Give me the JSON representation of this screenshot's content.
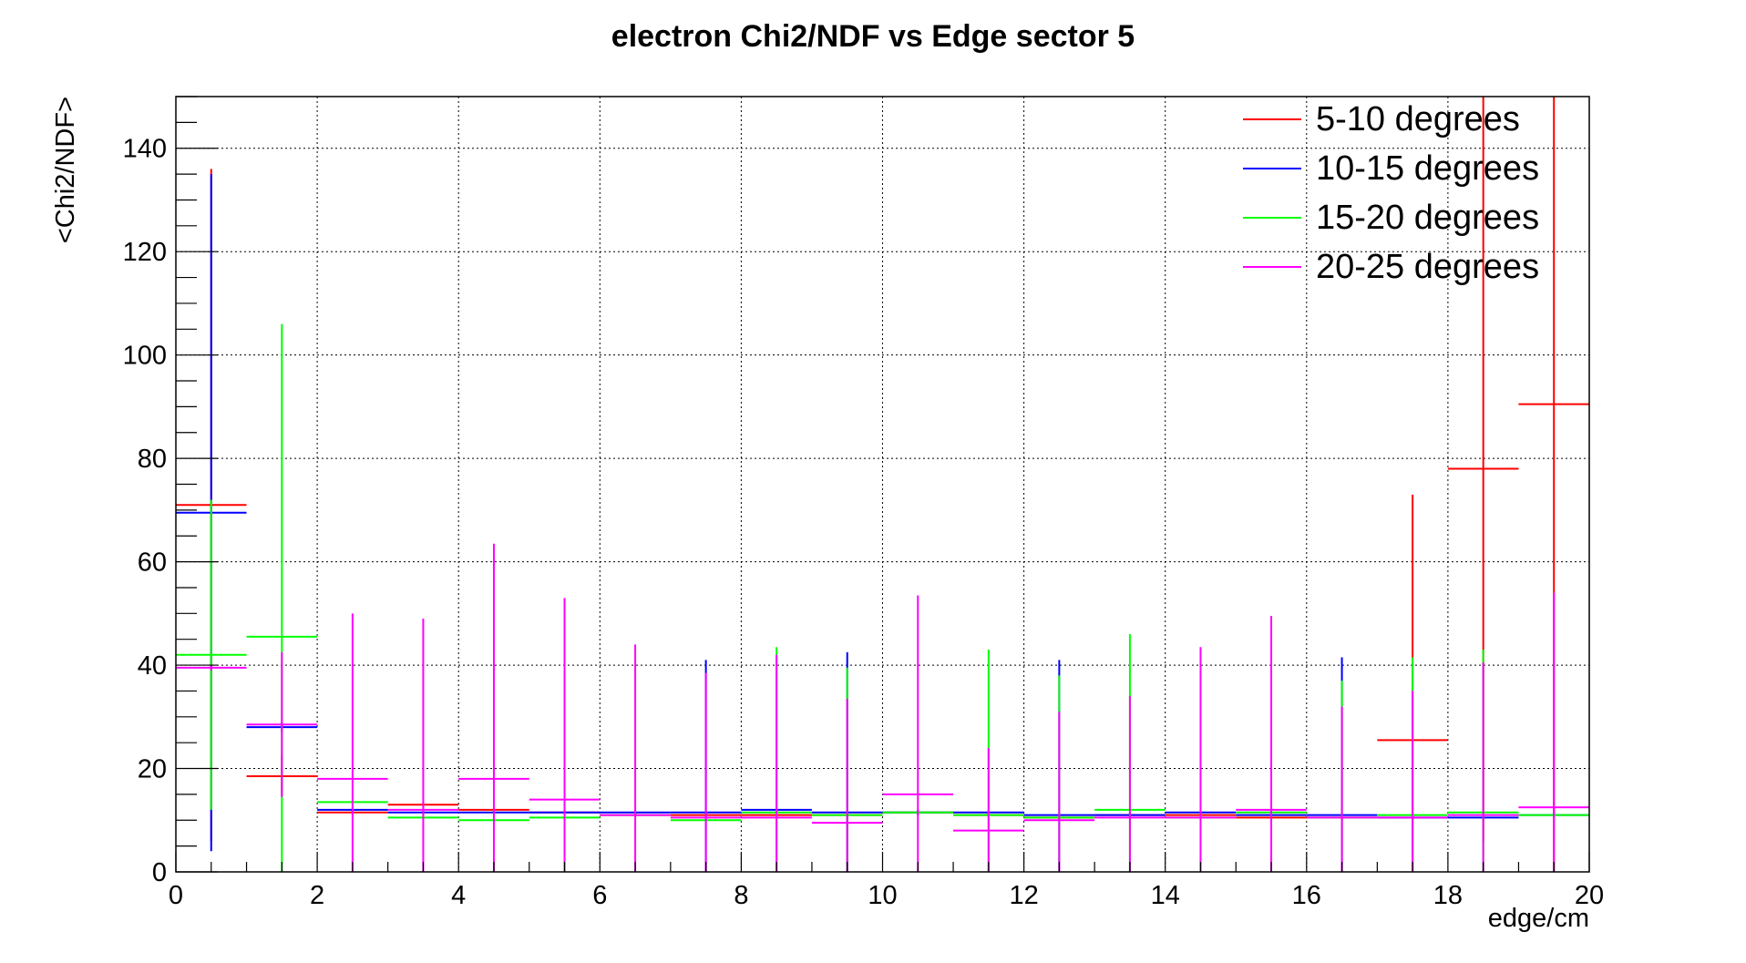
{
  "chart_data": {
    "type": "scatter",
    "title": "electron Chi2/NDF vs Edge sector 5",
    "xlabel": "edge/cm",
    "ylabel": "<Chi2/NDF>",
    "xlim": [
      0,
      20
    ],
    "ylim": [
      0,
      150
    ],
    "x_ticks": [
      0,
      2,
      4,
      6,
      8,
      10,
      12,
      14,
      16,
      18,
      20
    ],
    "y_ticks": [
      0,
      20,
      40,
      60,
      80,
      100,
      120,
      140
    ],
    "grid": true,
    "legend_position": "top-right",
    "bin_width": 1,
    "x": [
      0.5,
      1.5,
      2.5,
      3.5,
      4.5,
      5.5,
      6.5,
      7.5,
      8.5,
      9.5,
      10.5,
      11.5,
      12.5,
      13.5,
      14.5,
      15.5,
      16.5,
      17.5,
      18.5,
      19.5
    ],
    "series": [
      {
        "name": "5-10 degrees",
        "color": "#ff0000",
        "values": [
          71,
          18.5,
          11.5,
          13,
          12,
          11.5,
          11,
          11,
          11,
          11,
          11.5,
          11,
          10.5,
          11,
          11,
          10.5,
          10.5,
          25.5,
          78,
          90.5
        ],
        "errors": [
          65,
          4,
          0.5,
          0.5,
          0.5,
          0.5,
          0.5,
          0.5,
          0.5,
          0.5,
          0.5,
          0.5,
          0.5,
          0.5,
          0.5,
          0.5,
          0.5,
          47.5,
          72,
          95
        ]
      },
      {
        "name": "10-15 degrees",
        "color": "#0000ff",
        "values": [
          69.5,
          28,
          12,
          11.5,
          11.5,
          11.5,
          11.5,
          11.5,
          12,
          11.5,
          11.5,
          11.5,
          11,
          11,
          11.5,
          11,
          11,
          10.5,
          10.5,
          11
        ],
        "errors": [
          65.5,
          1,
          0.5,
          0.5,
          0.5,
          0.5,
          0.5,
          29.5,
          0.5,
          31,
          0.5,
          0.5,
          30,
          0.5,
          0.5,
          0.5,
          30.5,
          0.5,
          0.5,
          0.5
        ]
      },
      {
        "name": "15-20 degrees",
        "color": "#00ff00",
        "values": [
          42,
          45.5,
          13.5,
          10.5,
          10,
          10.5,
          11,
          10,
          11.5,
          11,
          11.5,
          11,
          10.5,
          12,
          10.5,
          11.5,
          10.5,
          11,
          11.5,
          11
        ],
        "errors": [
          30,
          60.5,
          0.5,
          0.5,
          0.5,
          0.5,
          0.5,
          0.5,
          32,
          28.5,
          0.5,
          32,
          27.5,
          34,
          0.5,
          0.5,
          26.5,
          30.5,
          31.5,
          0.5
        ]
      },
      {
        "name": "20-25 degrees",
        "color": "#ff00ff",
        "values": [
          39.5,
          28.5,
          18,
          12,
          18,
          14,
          11,
          10.5,
          10.5,
          9.5,
          15,
          8,
          10,
          10.5,
          10.5,
          12,
          10.5,
          10.5,
          11,
          12.5
        ],
        "errors": [
          0.5,
          14,
          32,
          37,
          45.5,
          39,
          33,
          28,
          31.5,
          24,
          38.5,
          16,
          21,
          23.5,
          33,
          37.5,
          21.5,
          24.5,
          29.5,
          41.5
        ]
      }
    ]
  }
}
